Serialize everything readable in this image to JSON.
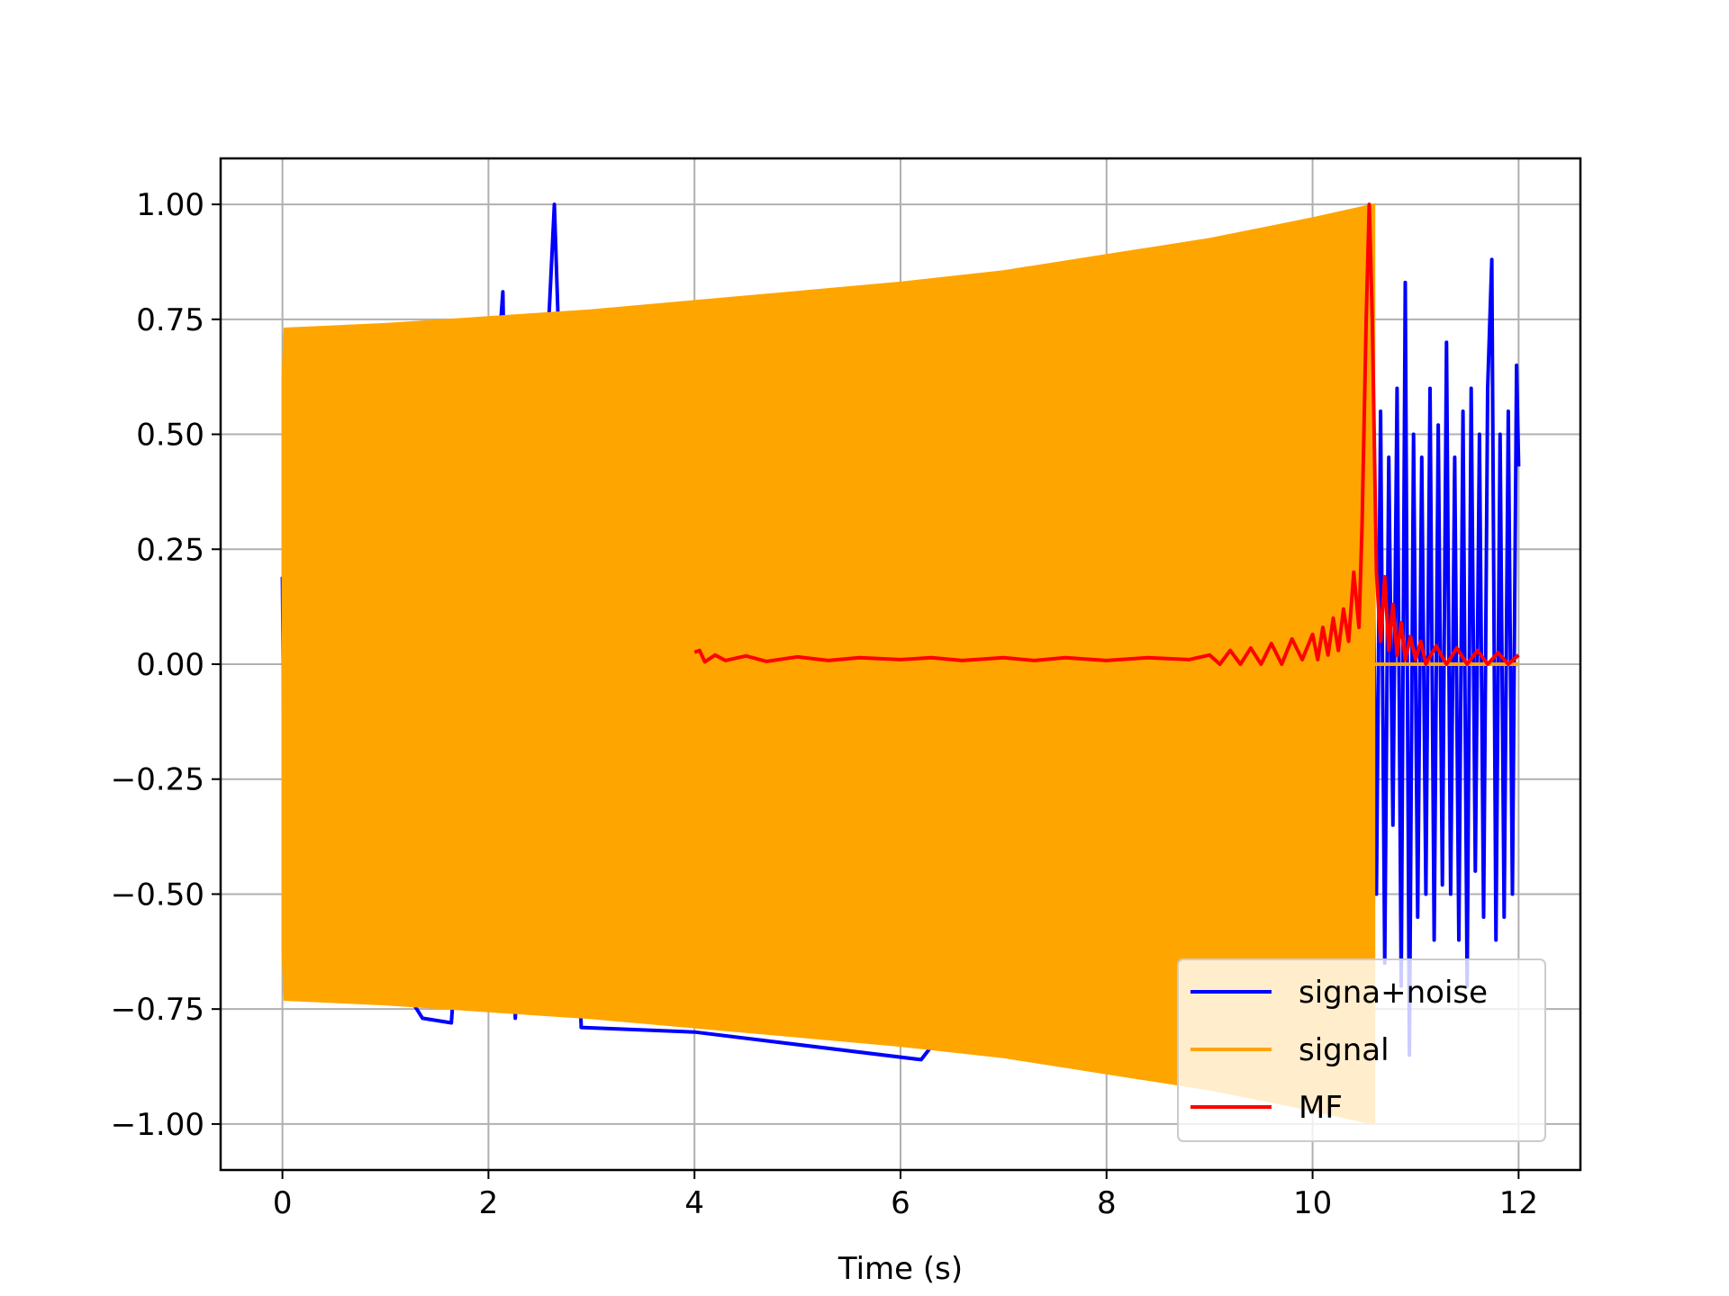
{
  "chart_data": {
    "type": "line",
    "title": "",
    "xlabel": "Time (s)",
    "ylabel": "",
    "xlim": [
      -0.6,
      12.6
    ],
    "ylim": [
      -1.1,
      1.1
    ],
    "grid": true,
    "legend_position": "lower-right",
    "x_ticks": [
      0,
      2,
      4,
      6,
      8,
      10,
      12
    ],
    "x_tick_labels": [
      "0",
      "2",
      "4",
      "6",
      "8",
      "10",
      "12"
    ],
    "y_ticks": [
      1.0,
      0.75,
      0.5,
      0.25,
      0.0,
      -0.25,
      -0.5,
      -0.75,
      -1.0
    ],
    "y_tick_labels": [
      "1.00",
      "0.75",
      "0.50",
      "0.25",
      "0.00",
      "−0.25",
      "−0.50",
      "−0.75",
      "−1.00"
    ],
    "series": [
      {
        "name": "signa+noise",
        "color": "#0000ff",
        "points": [
          [
            0.0,
            0.19
          ],
          [
            0.02,
            -0.29
          ],
          [
            1.36,
            -0.77
          ],
          [
            1.64,
            -0.78
          ],
          [
            2.14,
            0.81
          ],
          [
            2.26,
            -0.77
          ],
          [
            2.64,
            1.0
          ],
          [
            2.9,
            -0.79
          ],
          [
            4.0,
            -0.8
          ],
          [
            6.2,
            -0.86
          ],
          [
            10.58,
            0.4
          ],
          [
            10.62,
            -0.5
          ],
          [
            10.66,
            0.55
          ],
          [
            10.7,
            -0.65
          ],
          [
            10.74,
            0.45
          ],
          [
            10.78,
            -0.35
          ],
          [
            10.82,
            0.6
          ],
          [
            10.86,
            -0.7
          ],
          [
            10.9,
            0.83
          ],
          [
            10.94,
            -0.85
          ],
          [
            10.98,
            0.5
          ],
          [
            11.02,
            -0.55
          ],
          [
            11.06,
            0.45
          ],
          [
            11.1,
            -0.5
          ],
          [
            11.14,
            0.6
          ],
          [
            11.18,
            -0.6
          ],
          [
            11.22,
            0.52
          ],
          [
            11.26,
            -0.48
          ],
          [
            11.3,
            0.7
          ],
          [
            11.34,
            -0.5
          ],
          [
            11.38,
            0.45
          ],
          [
            11.42,
            -0.6
          ],
          [
            11.46,
            0.55
          ],
          [
            11.5,
            -0.7
          ],
          [
            11.54,
            0.6
          ],
          [
            11.58,
            -0.45
          ],
          [
            11.62,
            0.5
          ],
          [
            11.66,
            -0.55
          ],
          [
            11.7,
            0.6
          ],
          [
            11.74,
            0.88
          ],
          [
            11.78,
            -0.6
          ],
          [
            11.82,
            0.5
          ],
          [
            11.86,
            -0.55
          ],
          [
            11.9,
            0.55
          ],
          [
            11.94,
            -0.5
          ],
          [
            11.98,
            0.65
          ],
          [
            12.0,
            0.43
          ]
        ]
      },
      {
        "name": "signal",
        "color": "#ffa500",
        "envelope": [
          [
            0.0,
            0.62
          ],
          [
            0.02,
            0.73
          ],
          [
            1.0,
            0.74
          ],
          [
            2.0,
            0.755
          ],
          [
            3.0,
            0.77
          ],
          [
            4.0,
            0.79
          ],
          [
            5.0,
            0.81
          ],
          [
            6.0,
            0.83
          ],
          [
            7.0,
            0.855
          ],
          [
            8.0,
            0.89
          ],
          [
            9.0,
            0.925
          ],
          [
            10.0,
            0.97
          ],
          [
            10.6,
            1.0
          ]
        ],
        "after": [
          [
            10.6,
            0.0
          ],
          [
            12.0,
            0.0
          ]
        ]
      },
      {
        "name": "MF",
        "color": "#ff0000",
        "points": [
          [
            4.0,
            0.026
          ],
          [
            4.05,
            0.03
          ],
          [
            4.1,
            0.005
          ],
          [
            4.2,
            0.02
          ],
          [
            4.3,
            0.008
          ],
          [
            4.5,
            0.018
          ],
          [
            4.7,
            0.006
          ],
          [
            5.0,
            0.016
          ],
          [
            5.3,
            0.008
          ],
          [
            5.6,
            0.014
          ],
          [
            6.0,
            0.01
          ],
          [
            6.3,
            0.014
          ],
          [
            6.6,
            0.008
          ],
          [
            7.0,
            0.014
          ],
          [
            7.3,
            0.008
          ],
          [
            7.6,
            0.014
          ],
          [
            8.0,
            0.008
          ],
          [
            8.4,
            0.014
          ],
          [
            8.8,
            0.01
          ],
          [
            9.0,
            0.02
          ],
          [
            9.1,
            0.0
          ],
          [
            9.2,
            0.03
          ],
          [
            9.3,
            0.0
          ],
          [
            9.4,
            0.035
          ],
          [
            9.5,
            0.0
          ],
          [
            9.6,
            0.045
          ],
          [
            9.7,
            0.0
          ],
          [
            9.8,
            0.055
          ],
          [
            9.9,
            0.01
          ],
          [
            10.0,
            0.065
          ],
          [
            10.05,
            0.01
          ],
          [
            10.1,
            0.08
          ],
          [
            10.15,
            0.02
          ],
          [
            10.2,
            0.1
          ],
          [
            10.25,
            0.03
          ],
          [
            10.3,
            0.12
          ],
          [
            10.35,
            0.05
          ],
          [
            10.4,
            0.2
          ],
          [
            10.45,
            0.08
          ],
          [
            10.48,
            0.3
          ],
          [
            10.52,
            0.75
          ],
          [
            10.55,
            1.0
          ],
          [
            10.58,
            0.75
          ],
          [
            10.62,
            0.2
          ],
          [
            10.66,
            0.05
          ],
          [
            10.7,
            0.19
          ],
          [
            10.74,
            0.03
          ],
          [
            10.78,
            0.13
          ],
          [
            10.82,
            0.02
          ],
          [
            10.86,
            0.09
          ],
          [
            10.9,
            0.01
          ],
          [
            10.95,
            0.06
          ],
          [
            11.0,
            0.01
          ],
          [
            11.05,
            0.05
          ],
          [
            11.1,
            0.0
          ],
          [
            11.2,
            0.04
          ],
          [
            11.3,
            0.0
          ],
          [
            11.4,
            0.035
          ],
          [
            11.5,
            0.0
          ],
          [
            11.6,
            0.03
          ],
          [
            11.7,
            0.0
          ],
          [
            11.8,
            0.025
          ],
          [
            11.9,
            0.0
          ],
          [
            12.0,
            0.02
          ]
        ]
      }
    ]
  }
}
